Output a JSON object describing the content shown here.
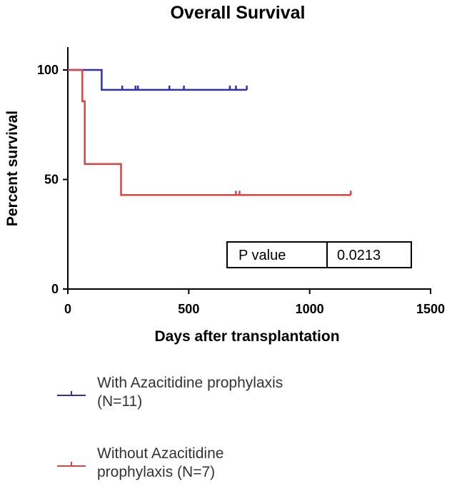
{
  "chart_data": {
    "type": "line",
    "subtype": "kaplan-meier step",
    "title": "Overall Survival",
    "xlabel": "Days after transplantation",
    "ylabel": "Percent survival",
    "xlim": [
      0,
      1500
    ],
    "ylim": [
      0,
      100
    ],
    "x_ticks": [
      0,
      500,
      1000,
      1500
    ],
    "y_ticks": [
      0,
      50,
      100
    ],
    "grid": false,
    "legend_position": "bottom",
    "series": [
      {
        "name": "With Azacitidine prophylaxis (N=11)",
        "color": "#2f2fb4",
        "steps": [
          [
            0,
            100
          ],
          [
            140,
            100
          ],
          [
            140,
            90.9
          ],
          [
            740,
            90.9
          ]
        ],
        "censored": [
          [
            225,
            90.9
          ],
          [
            280,
            90.9
          ],
          [
            290,
            90.9
          ],
          [
            420,
            90.9
          ],
          [
            480,
            90.9
          ],
          [
            670,
            90.9
          ],
          [
            695,
            90.9
          ],
          [
            740,
            90.9
          ]
        ]
      },
      {
        "name": "Without Azacitidine prophylaxis (N=7)",
        "color": "#d24646",
        "steps": [
          [
            0,
            100
          ],
          [
            60,
            100
          ],
          [
            60,
            85.7
          ],
          [
            70,
            85.7
          ],
          [
            70,
            57.1
          ],
          [
            220,
            57.1
          ],
          [
            220,
            42.9
          ],
          [
            1170,
            42.9
          ]
        ],
        "censored": [
          [
            695,
            42.9
          ],
          [
            710,
            42.9
          ],
          [
            1170,
            42.9
          ]
        ]
      }
    ],
    "annotation": {
      "label": "P value",
      "value": "0.0213"
    }
  },
  "legend": [
    {
      "line1": "With Azacitidine prophylaxis",
      "line2": "(N=11)",
      "color": "#2f2fb4"
    },
    {
      "line1": "Without Azacitidine",
      "line2": "prophylaxis (N=7)",
      "color": "#d24646"
    }
  ]
}
